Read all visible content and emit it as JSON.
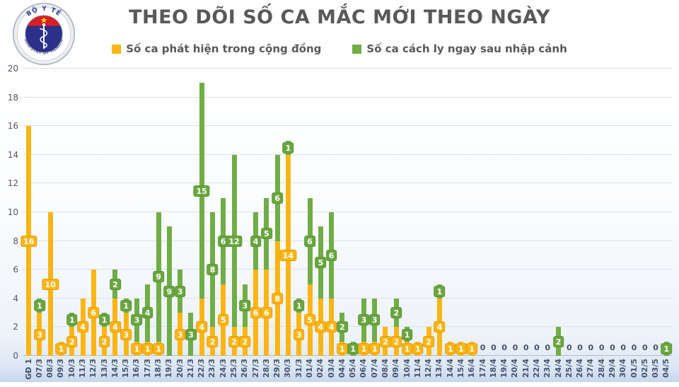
{
  "header": {
    "title": "THEO DÕI SỐ CA MẮC MỚI THEO NGÀY",
    "logo": {
      "top_text": "BỘ Y TẾ",
      "bottom_text": "MINISTRY OF HEALTH"
    }
  },
  "legend": [
    {
      "label": "Số ca phát hiện trong cộng đồng",
      "color": "#FBB514"
    },
    {
      "label": "Số ca cách ly ngay sau nhập cảnh",
      "color": "#70AD47"
    }
  ],
  "chart_data": {
    "type": "bar",
    "stacked": true,
    "title": "THEO DÕI SỐ CA MẮC MỚI THEO NGÀY",
    "xlabel": "",
    "ylabel": "",
    "ylim": [
      0,
      20
    ],
    "yticks": [
      0,
      2,
      4,
      6,
      8,
      10,
      12,
      14,
      16,
      18,
      20
    ],
    "grid": true,
    "legend_position": "top",
    "zero_label": "0",
    "categories": [
      "GĐ 1",
      "07/3",
      "08/3",
      "09/3",
      "10/3",
      "11/3",
      "12/3",
      "13/3",
      "14/3",
      "15/3",
      "16/3",
      "17/3",
      "18/3",
      "19/3",
      "20/3",
      "21/3",
      "22/3",
      "23/3",
      "24/3",
      "25/3",
      "26/3",
      "27/3",
      "28/3",
      "29/3",
      "30/3",
      "31/3",
      "01/4",
      "02/4",
      "03/4",
      "04/4",
      "05/4",
      "06/4",
      "07/4",
      "08/4",
      "09/4",
      "10/4",
      "11/4",
      "12/4",
      "13/4",
      "14/4",
      "15/4",
      "16/4",
      "17/4",
      "18/4",
      "19/4",
      "20/4",
      "21/4",
      "22/4",
      "23/4",
      "24/4",
      "25/4",
      "26/4",
      "27/4",
      "28/4",
      "29/4",
      "30/4",
      "01/5",
      "02/5",
      "03/5",
      "04/5"
    ],
    "series": [
      {
        "name": "Số ca phát hiện trong cộng đồng",
        "color": "#FBB514",
        "values": [
          16,
          3,
          10,
          1,
          2,
          4,
          6,
          2,
          4,
          3,
          1,
          1,
          1,
          0,
          3,
          0,
          4,
          2,
          5,
          2,
          2,
          6,
          6,
          8,
          14,
          3,
          5,
          4,
          4,
          1,
          0,
          1,
          1,
          2,
          2,
          1,
          1,
          2,
          4,
          1,
          1,
          1,
          0,
          0,
          0,
          0,
          0,
          0,
          0,
          0,
          0,
          0,
          0,
          0,
          0,
          0,
          0,
          0,
          0,
          0
        ]
      },
      {
        "name": "Số ca cách ly ngay sau nhập cảnh",
        "color": "#70AD47",
        "values": [
          0,
          1,
          0,
          0,
          1,
          0,
          0,
          1,
          2,
          1,
          3,
          4,
          9,
          9,
          3,
          3,
          15,
          8,
          6,
          12,
          3,
          4,
          5,
          6,
          1,
          1,
          6,
          5,
          6,
          2,
          1,
          3,
          3,
          0,
          2,
          1,
          0,
          0,
          1,
          0,
          0,
          0,
          0,
          0,
          0,
          0,
          0,
          0,
          0,
          2,
          0,
          0,
          0,
          0,
          0,
          0,
          0,
          0,
          0,
          1
        ]
      }
    ]
  },
  "colors": {
    "title": "#595959",
    "axis_labels": "#44546a",
    "gridline": "#dbe0e8",
    "logo_navy": "#2b3189",
    "logo_red": "#d71f26",
    "logo_star": "#ffd200"
  }
}
